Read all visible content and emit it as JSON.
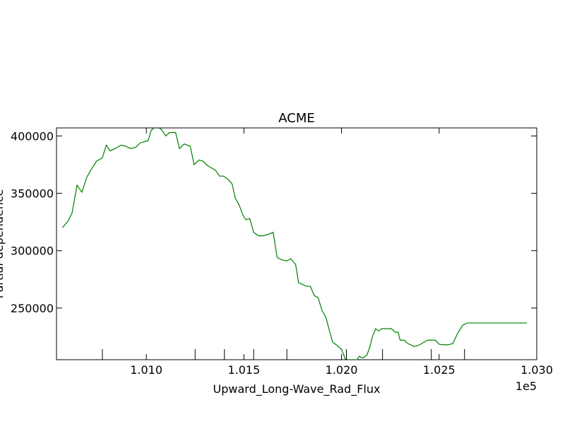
{
  "chart_data": {
    "type": "line",
    "title": "ACME",
    "xlabel": "Upward_Long-Wave_Rad_Flux",
    "ylabel": "Partial-dependence",
    "x_offset_label": "1e5",
    "xlim": [
      100540,
      103000
    ],
    "ylim": [
      205000,
      407000
    ],
    "x_ticks": [
      101000,
      101500,
      102000,
      102500,
      103000
    ],
    "x_tick_labels": [
      "1.010",
      "1.015",
      "1.020",
      "1.025",
      "1.030"
    ],
    "x_minor_ticks": [
      100775,
      101250,
      101400,
      101550,
      101720,
      102025,
      102210,
      102460,
      102630
    ],
    "y_ticks": [
      250000,
      300000,
      350000,
      400000
    ],
    "y_tick_labels": [
      "250000",
      "300000",
      "350000",
      "400000"
    ],
    "grid": false,
    "series": [
      {
        "color": "#008000",
        "x": [
          100570,
          100600,
          100620,
          100645,
          100670,
          100695,
          100715,
          100745,
          100775,
          100795,
          100815,
          100840,
          100870,
          100895,
          100920,
          100945,
          100970,
          100990,
          101010,
          101025,
          101050,
          101075,
          101100,
          101120,
          101135,
          101150,
          101170,
          101195,
          101225,
          101245,
          101270,
          101290,
          101315,
          101335,
          101355,
          101375,
          101395,
          101420,
          101440,
          101455,
          101475,
          101495,
          101510,
          101530,
          101550,
          101575,
          101600,
          101620,
          101650,
          101670,
          101695,
          101720,
          101740,
          101765,
          101780,
          101795,
          101820,
          101840,
          101860,
          101880,
          101900,
          101920,
          101940,
          101955,
          101965,
          101980,
          102000,
          102020,
          102035,
          102050,
          102070,
          102080,
          102090,
          102110,
          102130,
          102145,
          102160,
          102175,
          102190,
          102205,
          102225,
          102240,
          102255,
          102275,
          102290,
          102300,
          102320,
          102340,
          102355,
          102370,
          102385,
          102400,
          102420,
          102440,
          102460,
          102480,
          102500,
          102520,
          102545,
          102570,
          102595,
          102620,
          102645,
          102670,
          102690,
          102715,
          102740,
          102770,
          102795,
          102815,
          102840,
          102865,
          102890,
          102915,
          102935,
          102950
        ],
        "y": [
          320000,
          326000,
          333000,
          357000,
          351000,
          364000,
          370000,
          378000,
          381000,
          392000,
          387000,
          389000,
          392000,
          391000,
          389000,
          390000,
          394000,
          395000,
          396000,
          405000,
          408000,
          406000,
          400000,
          403000,
          403000,
          403000,
          389000,
          393000,
          391000,
          375000,
          379000,
          378000,
          374000,
          372000,
          370000,
          365000,
          365000,
          362000,
          358000,
          346000,
          340000,
          331000,
          327000,
          328000,
          316000,
          313000,
          313000,
          314000,
          316000,
          294000,
          292000,
          291000,
          293000,
          288000,
          272000,
          271000,
          269000,
          269000,
          261000,
          259000,
          248000,
          242000,
          229000,
          220000,
          219000,
          217000,
          214000,
          205500,
          205000,
          205000,
          205000,
          205000,
          208000,
          206500,
          209000,
          216000,
          226000,
          232000,
          230000,
          232000,
          232000,
          232000,
          232000,
          229000,
          229000,
          222000,
          222000,
          219000,
          218000,
          216500,
          217000,
          218000,
          220000,
          222000,
          222000,
          222000,
          218500,
          218000,
          218000,
          219000,
          228000,
          235000,
          237000,
          237000,
          237000,
          237000,
          237000,
          237000,
          237000,
          237000,
          237000,
          237000,
          237000,
          237000,
          237000,
          237000
        ]
      }
    ]
  }
}
